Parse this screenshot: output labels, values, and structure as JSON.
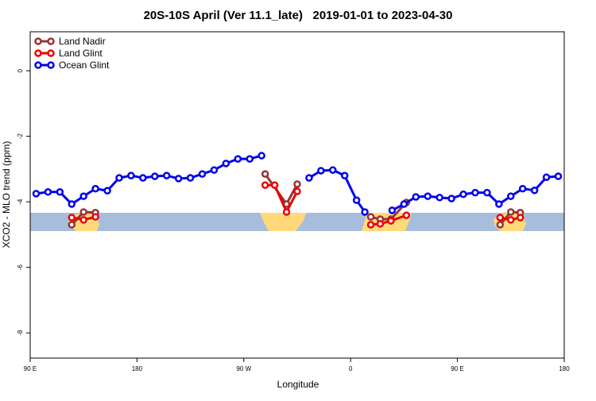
{
  "chart_data": {
    "type": "line",
    "title": "20S-10S April (Ver 11.1_late)   2019-01-01 to 2023-04-30",
    "x_label": "Longitude",
    "y_label": "XCO2 - MLO trend (ppm)",
    "xlim": [
      90,
      540
    ],
    "ylim": [
      -8.77,
      1.19
    ],
    "xticks": [
      {
        "value": 90,
        "label": "90 E"
      },
      {
        "value": 180,
        "label": "180"
      },
      {
        "value": 270,
        "label": "90 W"
      },
      {
        "value": 360,
        "label": "0"
      },
      {
        "value": 450,
        "label": "90 E"
      },
      {
        "value": 540,
        "label": "180"
      }
    ],
    "yticks": [
      0,
      -2,
      -4,
      -6,
      -8
    ],
    "legend": "top-left",
    "series": [
      {
        "name": "Land Nadir",
        "color": "#993333",
        "x": [
          125,
          135,
          145,
          null,
          288,
          306,
          315,
          null,
          377,
          385,
          394,
          407,
          null,
          486,
          495,
          503
        ],
        "values": [
          -4.7,
          -4.31,
          -4.33,
          null,
          -3.15,
          -4.07,
          -3.46,
          null,
          -4.46,
          -4.53,
          -4.53,
          -4.02,
          null,
          -4.7,
          -4.31,
          -4.33
        ]
      },
      {
        "name": "Land Glint",
        "color": "#ee0000",
        "x": [
          125,
          135,
          145,
          null,
          288,
          296,
          306,
          315,
          null,
          377,
          385,
          394,
          407,
          null,
          486,
          495,
          503
        ],
        "values": [
          -4.48,
          -4.55,
          -4.46,
          null,
          -3.49,
          -3.49,
          -4.31,
          -3.68,
          null,
          -4.7,
          -4.67,
          -4.58,
          -4.41,
          null,
          -4.48,
          -4.55,
          -4.48
        ]
      },
      {
        "name": "Ocean Glint",
        "color": "#0000ee",
        "x": [
          95,
          105,
          115,
          125,
          135,
          145,
          155,
          165,
          175,
          185,
          195,
          205,
          215,
          225,
          235,
          245,
          255,
          265,
          275,
          285,
          null,
          325,
          335,
          345,
          355,
          365,
          372,
          null,
          395,
          405,
          415,
          425,
          435,
          445,
          455,
          465,
          475,
          485,
          495,
          505,
          515,
          525,
          535
        ],
        "values": [
          -3.75,
          -3.7,
          -3.7,
          -4.07,
          -3.83,
          -3.6,
          -3.66,
          -3.27,
          -3.2,
          -3.27,
          -3.22,
          -3.2,
          -3.29,
          -3.27,
          -3.15,
          -3.03,
          -2.83,
          -2.69,
          -2.69,
          -2.59,
          null,
          -3.27,
          -3.05,
          -3.03,
          -3.2,
          -3.95,
          -4.31,
          null,
          -4.26,
          -4.07,
          -3.85,
          -3.83,
          -3.87,
          -3.9,
          -3.77,
          -3.72,
          -3.72,
          -4.07,
          -3.83,
          -3.6,
          -3.65,
          -3.25,
          -3.22
        ]
      }
    ]
  }
}
